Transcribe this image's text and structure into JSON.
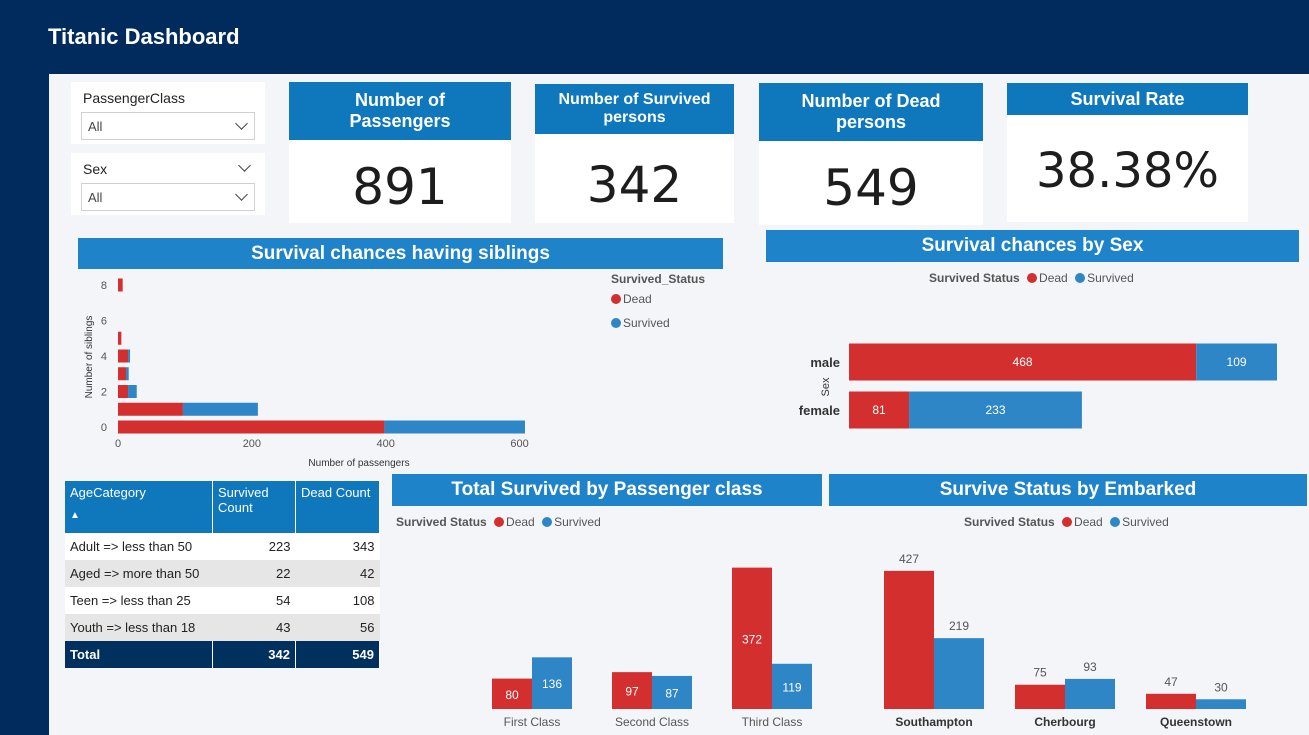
{
  "title": "Titanic Dashboard",
  "colors": {
    "dead": "#d32f2f",
    "survived": "#2e86c6",
    "header": "#0f78bd",
    "banner": "#1f83c9",
    "navy": "#002b5c"
  },
  "slicers": {
    "passenger_class": {
      "label": "PassengerClass",
      "value": "All"
    },
    "sex": {
      "label": "Sex",
      "value": "All"
    }
  },
  "kpis": [
    {
      "label": "Number of Passengers",
      "value": "891"
    },
    {
      "label": "Number of Survived persons",
      "value": "342"
    },
    {
      "label": "Number of Dead persons",
      "value": "549"
    },
    {
      "label": "Survival Rate",
      "value": "38.38%"
    }
  ],
  "chart_data": [
    {
      "type": "bar",
      "orientation": "horizontal-stacked",
      "title": "Survival chances having siblings",
      "xlabel": "Number of passengers",
      "ylabel": "Number of siblings",
      "legend_title": "Survived_Status",
      "categories": [
        0,
        1,
        2,
        3,
        4,
        5,
        8
      ],
      "yticks": [
        "0",
        "2",
        "4",
        "6",
        "8"
      ],
      "xticks": [
        "0",
        "200",
        "400",
        "600"
      ],
      "xlim": [
        0,
        620
      ],
      "series": [
        {
          "name": "Dead",
          "values": [
            398,
            97,
            15,
            12,
            15,
            5,
            7
          ]
        },
        {
          "name": "Survived",
          "values": [
            210,
            112,
            13,
            4,
            3,
            0,
            0
          ]
        }
      ]
    },
    {
      "type": "bar",
      "orientation": "horizontal-stacked",
      "title": "Survival chances by Sex",
      "ylabel": "Sex",
      "legend_title": "Survived Status",
      "categories": [
        "male",
        "female"
      ],
      "series": [
        {
          "name": "Dead",
          "values": [
            468,
            81
          ]
        },
        {
          "name": "Survived",
          "values": [
            109,
            233
          ]
        }
      ]
    },
    {
      "type": "bar",
      "orientation": "vertical-grouped",
      "title": "Total Survived by Passenger class",
      "legend_title": "Survived Status",
      "categories": [
        "First Class",
        "Second Class",
        "Third Class"
      ],
      "series": [
        {
          "name": "Dead",
          "values": [
            80,
            97,
            372
          ]
        },
        {
          "name": "Survived",
          "values": [
            136,
            87,
            119
          ]
        }
      ]
    },
    {
      "type": "bar",
      "orientation": "vertical-grouped",
      "title": "Survive Status by Embarked",
      "legend_title": "Survived Status",
      "categories": [
        "Southampton",
        "Cherbourg",
        "Queenstown"
      ],
      "series": [
        {
          "name": "Dead",
          "values": [
            427,
            75,
            47
          ]
        },
        {
          "name": "Survived",
          "values": [
            219,
            93,
            30
          ]
        }
      ]
    }
  ],
  "age_table": {
    "headers": [
      "AgeCategory",
      "Survived Count",
      "Dead Count"
    ],
    "rows": [
      [
        "Adult => less than 50",
        "223",
        "343"
      ],
      [
        "Aged => more than 50",
        "22",
        "42"
      ],
      [
        "Teen => less than 25",
        "54",
        "108"
      ],
      [
        "Youth => less than 18",
        "43",
        "56"
      ]
    ],
    "total": [
      "Total",
      "342",
      "549"
    ]
  }
}
